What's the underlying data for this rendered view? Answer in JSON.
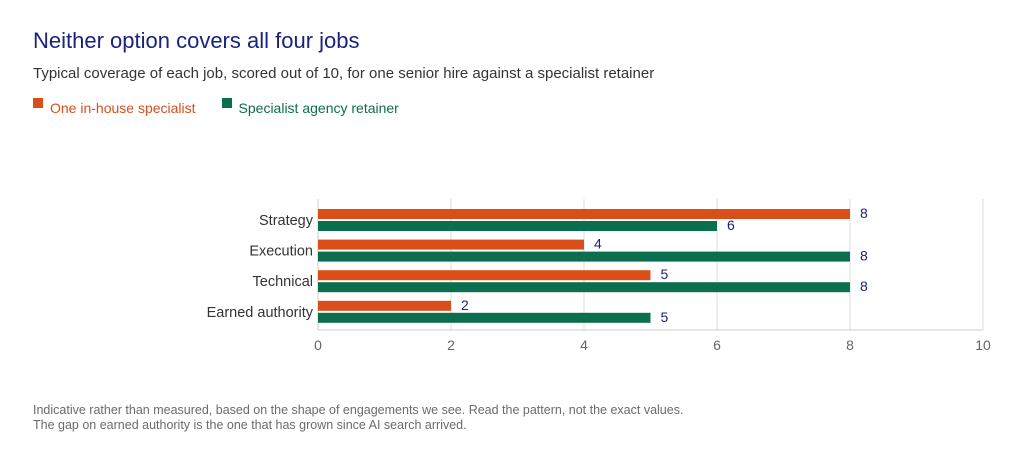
{
  "header": {
    "title": "Neither option covers all four jobs",
    "subtitle": "Typical coverage of each job, scored out of 10, for one senior hire against a specialist retainer"
  },
  "footnote": {
    "line1": "Indicative rather than measured, based on the shape of engagements we see. Read the pattern, not the exact values.",
    "line2": "The gap on earned authority is the one that has grown since AI search arrived."
  },
  "colors": {
    "in_house": "#d94f1a",
    "agency": "#0b6e4f",
    "title": "#1a237e",
    "value_label": "#1a237e",
    "grid": "#dddddd",
    "axis": "#cccccc"
  },
  "chart_data": {
    "type": "bar",
    "orientation": "horizontal",
    "categories": [
      "Strategy",
      "Execution",
      "Technical",
      "Earned authority"
    ],
    "series": [
      {
        "name": "One in-house specialist",
        "values": [
          8,
          4,
          5,
          2
        ]
      },
      {
        "name": "Specialist agency retainer",
        "values": [
          6,
          8,
          8,
          5
        ]
      }
    ],
    "xlim": [
      0,
      10
    ],
    "xticks": [
      "0",
      "2",
      "4",
      "6",
      "8",
      "10"
    ],
    "grid": true,
    "legend_position": "top-left",
    "data_labels": true
  }
}
